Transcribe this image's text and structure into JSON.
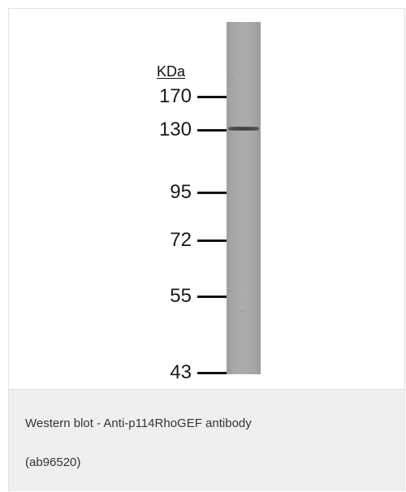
{
  "figure": {
    "unit_label": "KDa",
    "markers": [
      "170",
      "130",
      "95",
      "72",
      "55",
      "43"
    ],
    "band_marker": "130"
  },
  "caption": {
    "line1": "Western blot - Anti-p114RhoGEF antibody",
    "line2": "(ab96520)"
  }
}
